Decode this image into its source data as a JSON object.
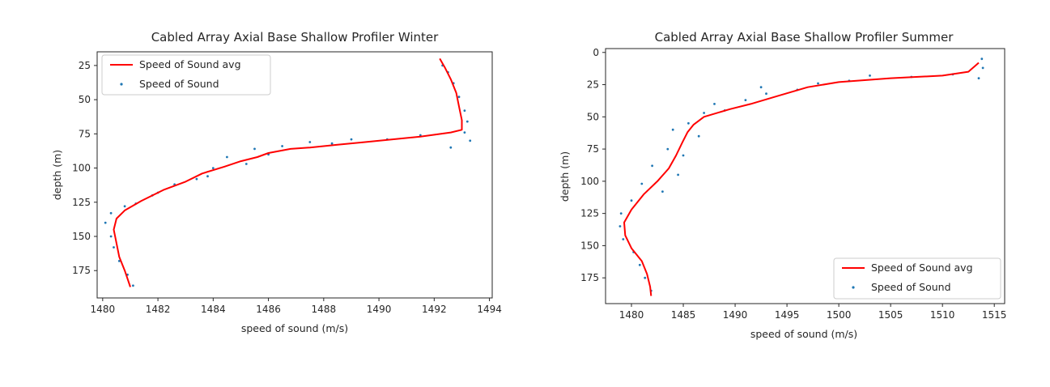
{
  "chart_data": [
    {
      "type": "scatter",
      "title": "Cabled Array Axial Base Shallow Profiler Winter",
      "xlabel": "speed of sound (m/s)",
      "ylabel": "depth (m)",
      "xlim": [
        1479.8,
        1494.1
      ],
      "ylim": [
        195,
        15
      ],
      "y_inverted": true,
      "xticks": [
        1480,
        1482,
        1484,
        1486,
        1488,
        1490,
        1492,
        1494
      ],
      "yticks": [
        25,
        50,
        75,
        100,
        125,
        150,
        175
      ],
      "grid": false,
      "legend_position": "upper left",
      "series": [
        {
          "name": "Speed of Sound avg",
          "kind": "line",
          "color": "#ff0000",
          "points": [
            [
              1492.2,
              20
            ],
            [
              1492.4,
              27
            ],
            [
              1492.6,
              35
            ],
            [
              1492.8,
              45
            ],
            [
              1492.9,
              55
            ],
            [
              1493.0,
              65
            ],
            [
              1493.0,
              72
            ],
            [
              1492.6,
              74
            ],
            [
              1491.5,
              77
            ],
            [
              1490.5,
              79
            ],
            [
              1489.5,
              81
            ],
            [
              1488.5,
              83
            ],
            [
              1487.5,
              85
            ],
            [
              1486.8,
              86
            ],
            [
              1486.0,
              89
            ],
            [
              1485.6,
              92
            ],
            [
              1485.0,
              95
            ],
            [
              1484.4,
              99
            ],
            [
              1483.6,
              104
            ],
            [
              1483.0,
              110
            ],
            [
              1482.2,
              116
            ],
            [
              1481.4,
              124
            ],
            [
              1480.8,
              131
            ],
            [
              1480.5,
              137
            ],
            [
              1480.4,
              145
            ],
            [
              1480.5,
              155
            ],
            [
              1480.6,
              165
            ],
            [
              1480.8,
              175
            ],
            [
              1481.0,
              187
            ]
          ]
        },
        {
          "name": "Speed of Sound",
          "kind": "scatter",
          "color": "#1f77b4",
          "points": [
            [
              1492.3,
              25
            ],
            [
              1492.5,
              30
            ],
            [
              1492.7,
              38
            ],
            [
              1492.9,
              48
            ],
            [
              1493.1,
              58
            ],
            [
              1493.2,
              66
            ],
            [
              1493.1,
              74
            ],
            [
              1493.3,
              80
            ],
            [
              1492.6,
              85
            ],
            [
              1491.5,
              76
            ],
            [
              1490.3,
              79
            ],
            [
              1489.0,
              79
            ],
            [
              1488.3,
              82
            ],
            [
              1487.5,
              81
            ],
            [
              1486.5,
              84
            ],
            [
              1485.5,
              86
            ],
            [
              1484.5,
              92
            ],
            [
              1486.0,
              90
            ],
            [
              1484.0,
              100
            ],
            [
              1483.4,
              108
            ],
            [
              1482.6,
              112
            ],
            [
              1481.8,
              120
            ],
            [
              1481.2,
              126
            ],
            [
              1480.3,
              133
            ],
            [
              1480.1,
              140
            ],
            [
              1480.3,
              150
            ],
            [
              1480.4,
              158
            ],
            [
              1480.6,
              168
            ],
            [
              1480.9,
              178
            ],
            [
              1481.1,
              186
            ],
            [
              1485.2,
              97
            ],
            [
              1483.8,
              106
            ],
            [
              1482.0,
              118
            ],
            [
              1480.8,
              128
            ]
          ]
        }
      ]
    },
    {
      "type": "scatter",
      "title": "Cabled Array Axial Base Shallow Profiler Summer",
      "xlabel": "speed of sound (m/s)",
      "ylabel": "depth (m)",
      "xlim": [
        1477.5,
        1516
      ],
      "ylim": [
        195,
        -3
      ],
      "y_inverted": true,
      "xticks": [
        1480,
        1485,
        1490,
        1495,
        1500,
        1505,
        1510,
        1515
      ],
      "yticks": [
        0,
        25,
        50,
        75,
        100,
        125,
        150,
        175
      ],
      "grid": false,
      "legend_position": "lower right",
      "series": [
        {
          "name": "Speed of Sound avg",
          "kind": "line",
          "color": "#ff0000",
          "points": [
            [
              1513.5,
              8
            ],
            [
              1512.5,
              15
            ],
            [
              1510.0,
              18
            ],
            [
              1505.0,
              20
            ],
            [
              1500.0,
              23
            ],
            [
              1497.0,
              27
            ],
            [
              1494.0,
              34
            ],
            [
              1491.5,
              40
            ],
            [
              1489.5,
              44
            ],
            [
              1487.0,
              50
            ],
            [
              1486.0,
              56
            ],
            [
              1485.4,
              62
            ],
            [
              1484.9,
              70
            ],
            [
              1484.3,
              80
            ],
            [
              1483.6,
              90
            ],
            [
              1482.5,
              100
            ],
            [
              1481.2,
              110
            ],
            [
              1480.0,
              122
            ],
            [
              1479.3,
              132
            ],
            [
              1479.4,
              142
            ],
            [
              1480.0,
              152
            ],
            [
              1481.0,
              162
            ],
            [
              1481.5,
              172
            ],
            [
              1481.8,
              182
            ],
            [
              1481.9,
              189
            ]
          ]
        },
        {
          "name": "Speed of Sound",
          "kind": "scatter",
          "color": "#1f77b4",
          "points": [
            [
              1513.8,
              5
            ],
            [
              1513.9,
              12
            ],
            [
              1513.5,
              20
            ],
            [
              1511.0,
              17
            ],
            [
              1507.0,
              19
            ],
            [
              1503.0,
              18
            ],
            [
              1501.0,
              22
            ],
            [
              1498.0,
              24
            ],
            [
              1496.0,
              29
            ],
            [
              1493.0,
              32
            ],
            [
              1491.0,
              37
            ],
            [
              1489.0,
              45
            ],
            [
              1487.0,
              47
            ],
            [
              1485.5,
              55
            ],
            [
              1484.0,
              60
            ],
            [
              1486.5,
              65
            ],
            [
              1483.5,
              75
            ],
            [
              1485.0,
              80
            ],
            [
              1482.0,
              88
            ],
            [
              1484.5,
              95
            ],
            [
              1481.0,
              102
            ],
            [
              1483.0,
              108
            ],
            [
              1480.0,
              115
            ],
            [
              1479.0,
              125
            ],
            [
              1478.9,
              135
            ],
            [
              1479.2,
              145
            ],
            [
              1480.2,
              155
            ],
            [
              1480.8,
              165
            ],
            [
              1481.3,
              175
            ],
            [
              1481.9,
              185
            ],
            [
              1488.0,
              40
            ],
            [
              1492.5,
              27
            ]
          ]
        }
      ]
    }
  ]
}
